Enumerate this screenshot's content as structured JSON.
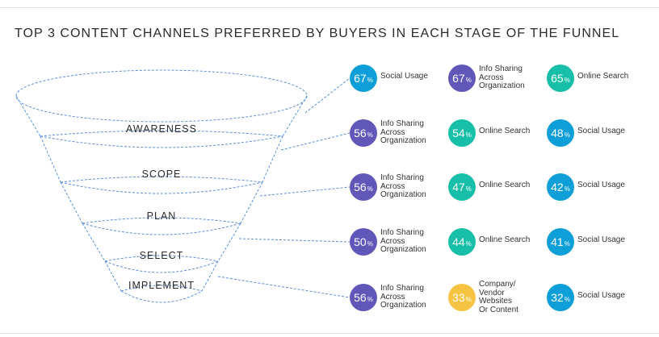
{
  "title": "TOP 3 CONTENT CHANNELS PREFERRED BY BUYERS IN EACH STAGE OF THE FUNNEL",
  "colors": {
    "purple": "#6157b8",
    "blue": "#0e9fd8",
    "teal": "#17bfa8",
    "yellow": "#f6c343",
    "funnel_line": "#5b8fd9"
  },
  "stages": [
    {
      "name": "AWARENESS",
      "channels": [
        {
          "value": "67",
          "unit": "%",
          "label": [
            "Social Usage"
          ],
          "color": "blue"
        },
        {
          "value": "67",
          "unit": "%",
          "label": [
            "Info Sharing",
            "Across",
            "Organization"
          ],
          "color": "purple"
        },
        {
          "value": "65",
          "unit": "%",
          "label": [
            "Online Search"
          ],
          "color": "teal"
        }
      ]
    },
    {
      "name": "SCOPE",
      "channels": [
        {
          "value": "56",
          "unit": "%",
          "label": [
            "Info Sharing",
            "Across",
            "Organization"
          ],
          "color": "purple"
        },
        {
          "value": "54",
          "unit": "%",
          "label": [
            "Online Search"
          ],
          "color": "teal"
        },
        {
          "value": "48",
          "unit": "%",
          "label": [
            "Social Usage"
          ],
          "color": "blue"
        }
      ]
    },
    {
      "name": "PLAN",
      "channels": [
        {
          "value": "56",
          "unit": "%",
          "label": [
            "Info Sharing",
            "Across",
            "Organization"
          ],
          "color": "purple"
        },
        {
          "value": "47",
          "unit": "%",
          "label": [
            "Online Search"
          ],
          "color": "teal"
        },
        {
          "value": "42",
          "unit": "%",
          "label": [
            "Social Usage"
          ],
          "color": "blue"
        }
      ]
    },
    {
      "name": "SELECT",
      "channels": [
        {
          "value": "50",
          "unit": "%",
          "label": [
            "Info Sharing",
            "Across",
            "Organization"
          ],
          "color": "purple"
        },
        {
          "value": "44",
          "unit": "%",
          "label": [
            "Online Search"
          ],
          "color": "teal"
        },
        {
          "value": "41",
          "unit": "%",
          "label": [
            "Social Usage"
          ],
          "color": "blue"
        }
      ]
    },
    {
      "name": "IMPLEMENT",
      "channels": [
        {
          "value": "56",
          "unit": "%",
          "label": [
            "Info Sharing",
            "Across",
            "Organization"
          ],
          "color": "purple"
        },
        {
          "value": "33",
          "unit": "%",
          "label": [
            "Company/",
            "Vendor",
            "Websites",
            "Or Content"
          ],
          "color": "yellow"
        },
        {
          "value": "32",
          "unit": "%",
          "label": [
            "Social Usage"
          ],
          "color": "blue"
        }
      ]
    }
  ]
}
